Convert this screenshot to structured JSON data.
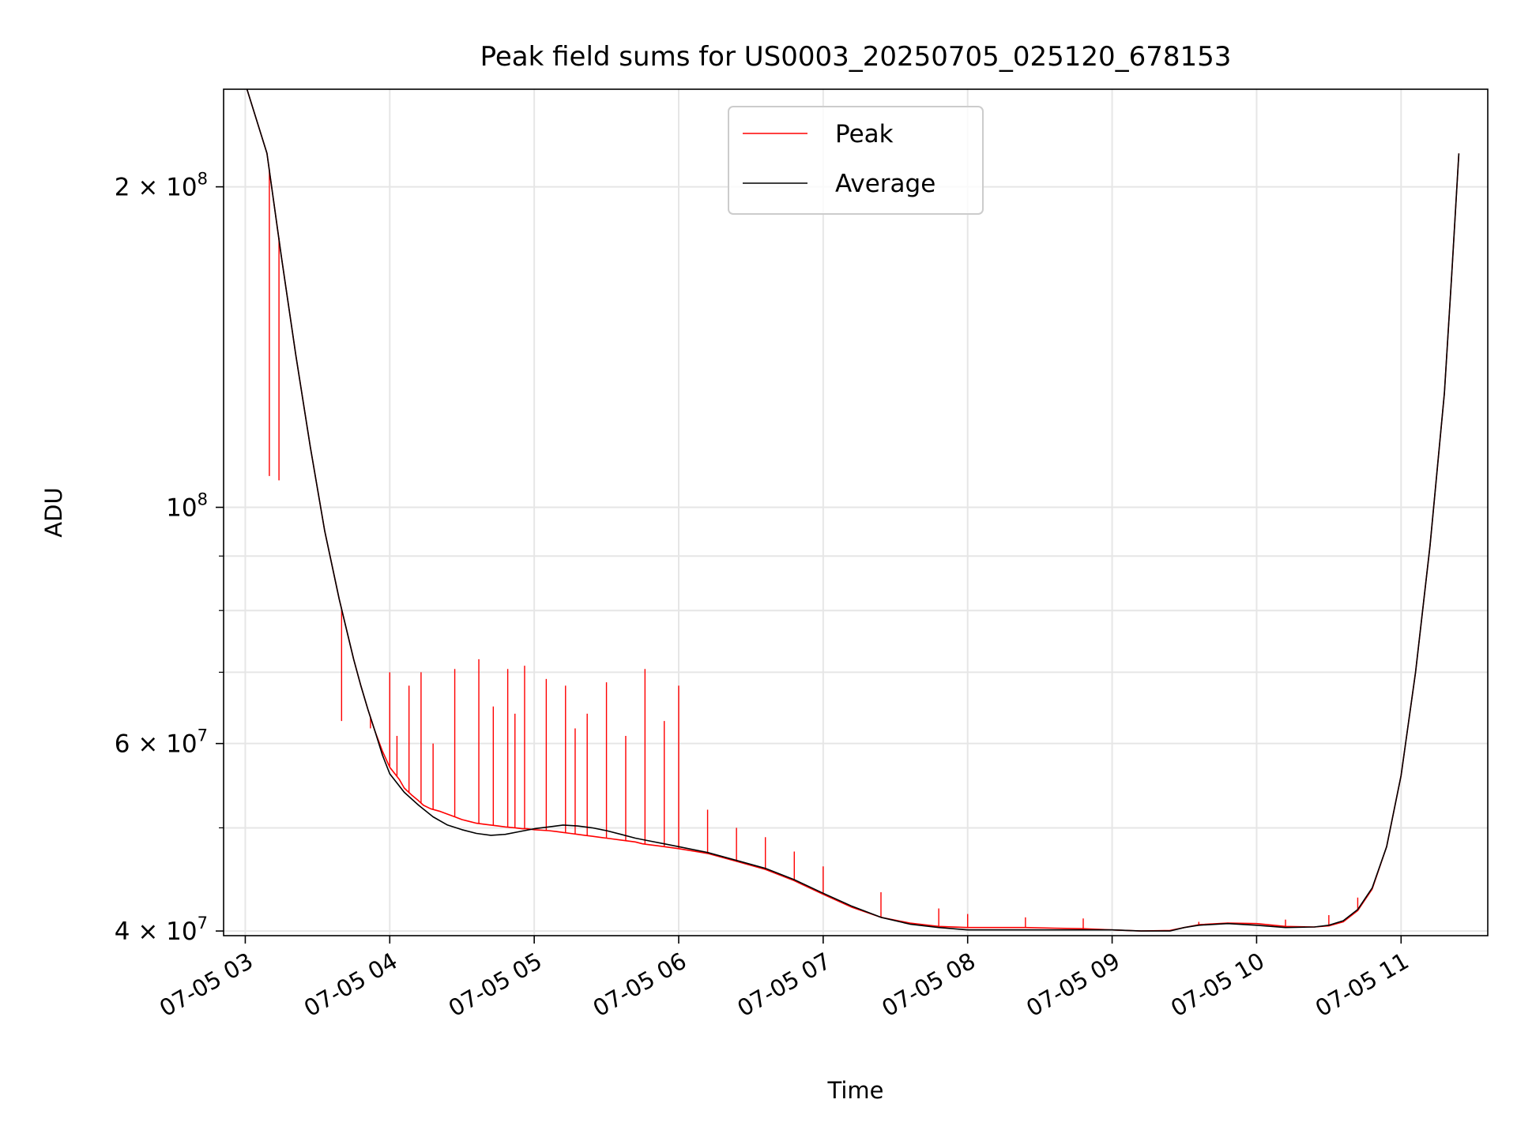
{
  "chart_data": {
    "type": "line",
    "title": "Peak field sums for US0003_20250705_025120_678153",
    "xlabel": "Time",
    "ylabel": "ADU",
    "yscale": "log",
    "ylim": [
      39600000,
      247000000
    ],
    "xlim": [
      "2025-07-05 02:51",
      "2025-07-05 11:36"
    ],
    "grid": true,
    "legend": "upper center",
    "x_ticks": [
      {
        "value": "2025-07-05 03:00",
        "label": "07-05 03"
      },
      {
        "value": "2025-07-05 04:00",
        "label": "07-05 04"
      },
      {
        "value": "2025-07-05 05:00",
        "label": "07-05 05"
      },
      {
        "value": "2025-07-05 06:00",
        "label": "07-05 06"
      },
      {
        "value": "2025-07-05 07:00",
        "label": "07-05 07"
      },
      {
        "value": "2025-07-05 08:00",
        "label": "07-05 08"
      },
      {
        "value": "2025-07-05 09:00",
        "label": "07-05 09"
      },
      {
        "value": "2025-07-05 10:00",
        "label": "07-05 10"
      },
      {
        "value": "2025-07-05 11:00",
        "label": "07-05 11"
      }
    ],
    "y_major_ticks": [
      {
        "value": 40000000,
        "mantissa": "4",
        "exponent": "7"
      },
      {
        "value": 60000000,
        "mantissa": "6",
        "exponent": "7"
      },
      {
        "value": 100000000,
        "mantissa": "",
        "exponent": "8"
      },
      {
        "value": 200000000,
        "mantissa": "2",
        "exponent": "8"
      }
    ],
    "y_minor_ticks": [
      50000000,
      70000000,
      80000000,
      90000000,
      300000000
    ],
    "series": [
      {
        "name": "Peak",
        "color": "#ff0000",
        "x": [
          "2025-07-05 03:00",
          "2025-07-05 03:09",
          "2025-07-05 03:15",
          "2025-07-05 03:21",
          "2025-07-05 03:27",
          "2025-07-05 03:33",
          "2025-07-05 03:39",
          "2025-07-05 03:45",
          "2025-07-05 03:48",
          "2025-07-05 03:51",
          "2025-07-05 03:54",
          "2025-07-05 03:57",
          "2025-07-05 04:00",
          "2025-07-05 04:04",
          "2025-07-05 04:06",
          "2025-07-05 04:09",
          "2025-07-05 04:12",
          "2025-07-05 04:14",
          "2025-07-05 04:17",
          "2025-07-05 04:21",
          "2025-07-05 04:24",
          "2025-07-05 04:27",
          "2025-07-05 04:30",
          "2025-07-05 04:33",
          "2025-07-05 04:36",
          "2025-07-05 04:39",
          "2025-07-05 04:45",
          "2025-07-05 04:48",
          "2025-07-05 04:52",
          "2025-07-05 04:55",
          "2025-07-05 04:57",
          "2025-07-05 05:00",
          "2025-07-05 05:06",
          "2025-07-05 05:09",
          "2025-07-05 05:12",
          "2025-07-05 05:15",
          "2025-07-05 05:18",
          "2025-07-05 05:21",
          "2025-07-05 05:24",
          "2025-07-05 05:27",
          "2025-07-05 05:30",
          "2025-07-05 05:36",
          "2025-07-05 05:42",
          "2025-07-05 05:45",
          "2025-07-05 05:48",
          "2025-07-05 05:51",
          "2025-07-05 05:54",
          "2025-07-05 06:00",
          "2025-07-05 06:12",
          "2025-07-05 06:24",
          "2025-07-05 06:36",
          "2025-07-05 06:48",
          "2025-07-05 07:00",
          "2025-07-05 07:12",
          "2025-07-05 07:24",
          "2025-07-05 07:36",
          "2025-07-05 07:48",
          "2025-07-05 08:00",
          "2025-07-05 08:12",
          "2025-07-05 08:24",
          "2025-07-05 08:36",
          "2025-07-05 08:48",
          "2025-07-05 09:00",
          "2025-07-05 09:12",
          "2025-07-05 09:24",
          "2025-07-05 09:30",
          "2025-07-05 09:36",
          "2025-07-05 09:48",
          "2025-07-05 10:00",
          "2025-07-05 10:12",
          "2025-07-05 10:24",
          "2025-07-05 10:30",
          "2025-07-05 10:36",
          "2025-07-05 10:42",
          "2025-07-05 10:48",
          "2025-07-05 10:54",
          "2025-07-05 11:00",
          "2025-07-05 11:06",
          "2025-07-05 11:12",
          "2025-07-05 11:18",
          "2025-07-05 11:21",
          "2025-07-05 11:24"
        ],
        "y": [
          250000000,
          215000000,
          172000000,
          139000000,
          114000000,
          95000000,
          82000000,
          72000000,
          68000000,
          64500000,
          61500000,
          59000000,
          57000000,
          55500000,
          54500000,
          53700000,
          53000000,
          52500000,
          52100000,
          51800000,
          51500000,
          51200000,
          50900000,
          50700000,
          50500000,
          50400000,
          50200000,
          50100000,
          50000000,
          49900000,
          49900000,
          49800000,
          49700000,
          49600000,
          49500000,
          49400000,
          49300000,
          49200000,
          49100000,
          49000000,
          48900000,
          48700000,
          48500000,
          48300000,
          48200000,
          48100000,
          48000000,
          47800000,
          47300000,
          46500000,
          45700000,
          44600000,
          43300000,
          42100000,
          41200000,
          40700000,
          40400000,
          40300000,
          40300000,
          40300000,
          40250000,
          40200000,
          40100000,
          40000000,
          40050000,
          40300000,
          40550000,
          40700000,
          40650000,
          40400000,
          40350000,
          40450000,
          40800000,
          41800000,
          43800000,
          48000000,
          56000000,
          70000000,
          92000000,
          128000000,
          165000000,
          215000000
        ]
      },
      {
        "name": "Average",
        "color": "#000000",
        "x": [
          "2025-07-05 03:00",
          "2025-07-05 03:09",
          "2025-07-05 03:15",
          "2025-07-05 03:21",
          "2025-07-05 03:27",
          "2025-07-05 03:33",
          "2025-07-05 03:39",
          "2025-07-05 03:45",
          "2025-07-05 03:48",
          "2025-07-05 03:51",
          "2025-07-05 03:54",
          "2025-07-05 03:57",
          "2025-07-05 04:00",
          "2025-07-05 04:06",
          "2025-07-05 04:12",
          "2025-07-05 04:18",
          "2025-07-05 04:24",
          "2025-07-05 04:30",
          "2025-07-05 04:36",
          "2025-07-05 04:42",
          "2025-07-05 04:48",
          "2025-07-05 04:54",
          "2025-07-05 05:00",
          "2025-07-05 05:06",
          "2025-07-05 05:12",
          "2025-07-05 05:18",
          "2025-07-05 05:24",
          "2025-07-05 05:30",
          "2025-07-05 05:36",
          "2025-07-05 05:42",
          "2025-07-05 05:48",
          "2025-07-05 05:54",
          "2025-07-05 06:00",
          "2025-07-05 06:12",
          "2025-07-05 06:24",
          "2025-07-05 06:36",
          "2025-07-05 06:48",
          "2025-07-05 07:00",
          "2025-07-05 07:12",
          "2025-07-05 07:24",
          "2025-07-05 07:36",
          "2025-07-05 07:48",
          "2025-07-05 08:00",
          "2025-07-05 08:12",
          "2025-07-05 08:24",
          "2025-07-05 08:36",
          "2025-07-05 08:48",
          "2025-07-05 09:00",
          "2025-07-05 09:12",
          "2025-07-05 09:24",
          "2025-07-05 09:30",
          "2025-07-05 09:36",
          "2025-07-05 09:48",
          "2025-07-05 10:00",
          "2025-07-05 10:12",
          "2025-07-05 10:24",
          "2025-07-05 10:30",
          "2025-07-05 10:36",
          "2025-07-05 10:42",
          "2025-07-05 10:48",
          "2025-07-05 10:54",
          "2025-07-05 11:00",
          "2025-07-05 11:06",
          "2025-07-05 11:12",
          "2025-07-05 11:18",
          "2025-07-05 11:21",
          "2025-07-05 11:24"
        ],
        "y": [
          250000000,
          215000000,
          172000000,
          139000000,
          114000000,
          95000000,
          82000000,
          72000000,
          68000000,
          64500000,
          61500000,
          58500000,
          56200000,
          54000000,
          52500000,
          51200000,
          50300000,
          49800000,
          49400000,
          49200000,
          49300000,
          49600000,
          49900000,
          50100000,
          50300000,
          50200000,
          50000000,
          49700000,
          49300000,
          48900000,
          48600000,
          48300000,
          48000000,
          47400000,
          46600000,
          45800000,
          44700000,
          43400000,
          42200000,
          41200000,
          40600000,
          40300000,
          40100000,
          40100000,
          40100000,
          40100000,
          40100000,
          40100000,
          40000000,
          40000000,
          40300000,
          40500000,
          40650000,
          40500000,
          40300000,
          40350000,
          40500000,
          40900000,
          41900000,
          43900000,
          48000000,
          56000000,
          70000000,
          92000000,
          128000000,
          165000000,
          215000000
        ]
      }
    ],
    "peak_spikes": [
      {
        "x": "2025-07-05 03:10",
        "y": 107000000
      },
      {
        "x": "2025-07-05 03:14",
        "y": 106000000
      },
      {
        "x": "2025-07-05 03:40",
        "y": 63000000
      },
      {
        "x": "2025-07-05 03:48",
        "y": 68000000
      },
      {
        "x": "2025-07-05 03:52",
        "y": 62000000
      },
      {
        "x": "2025-07-05 04:00",
        "y": 70000000
      },
      {
        "x": "2025-07-05 04:03",
        "y": 61000000
      },
      {
        "x": "2025-07-05 04:08",
        "y": 68000000
      },
      {
        "x": "2025-07-05 04:13",
        "y": 70000000
      },
      {
        "x": "2025-07-05 04:18",
        "y": 60000000
      },
      {
        "x": "2025-07-05 04:27",
        "y": 70500000
      },
      {
        "x": "2025-07-05 04:37",
        "y": 72000000
      },
      {
        "x": "2025-07-05 04:43",
        "y": 65000000
      },
      {
        "x": "2025-07-05 04:49",
        "y": 70500000
      },
      {
        "x": "2025-07-05 04:52",
        "y": 64000000
      },
      {
        "x": "2025-07-05 04:56",
        "y": 71000000
      },
      {
        "x": "2025-07-05 05:05",
        "y": 69000000
      },
      {
        "x": "2025-07-05 05:13",
        "y": 68000000
      },
      {
        "x": "2025-07-05 05:17",
        "y": 62000000
      },
      {
        "x": "2025-07-05 05:22",
        "y": 64000000
      },
      {
        "x": "2025-07-05 05:30",
        "y": 68500000
      },
      {
        "x": "2025-07-05 05:38",
        "y": 61000000
      },
      {
        "x": "2025-07-05 05:46",
        "y": 70500000
      },
      {
        "x": "2025-07-05 05:54",
        "y": 63000000
      },
      {
        "x": "2025-07-05 06:00",
        "y": 68000000
      },
      {
        "x": "2025-07-05 06:12",
        "y": 52000000
      },
      {
        "x": "2025-07-05 06:24",
        "y": 50000000
      },
      {
        "x": "2025-07-05 06:36",
        "y": 49000000
      },
      {
        "x": "2025-07-05 06:48",
        "y": 47500000
      },
      {
        "x": "2025-07-05 07:00",
        "y": 46000000
      },
      {
        "x": "2025-07-05 07:24",
        "y": 43500000
      },
      {
        "x": "2025-07-05 07:48",
        "y": 42000000
      },
      {
        "x": "2025-07-05 08:00",
        "y": 41500000
      },
      {
        "x": "2025-07-05 08:24",
        "y": 41200000
      },
      {
        "x": "2025-07-05 08:48",
        "y": 41100000
      },
      {
        "x": "2025-07-05 09:36",
        "y": 40800000
      },
      {
        "x": "2025-07-05 10:12",
        "y": 41000000
      },
      {
        "x": "2025-07-05 10:30",
        "y": 41400000
      },
      {
        "x": "2025-07-05 10:42",
        "y": 43000000
      }
    ],
    "legend_entries": [
      "Peak",
      "Average"
    ]
  }
}
